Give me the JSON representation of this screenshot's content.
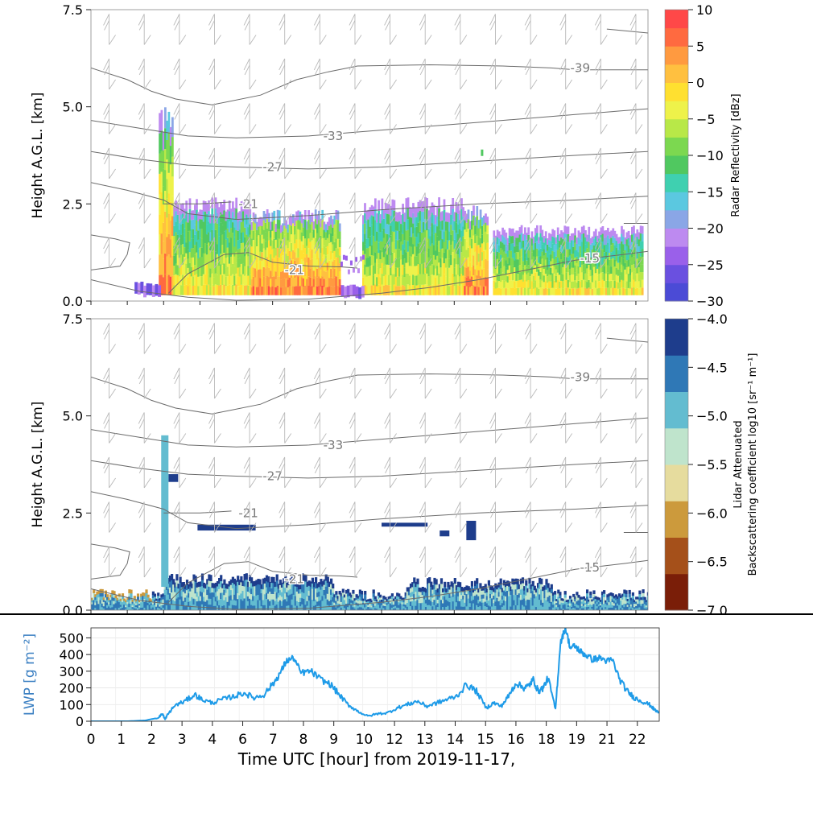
{
  "chart_data": [
    {
      "type": "heatmap",
      "panel": "radar",
      "ylabel": "Height A.G.L. [km]",
      "ylim": [
        0,
        7.5
      ],
      "yticks": [
        "0.0",
        "2.5",
        "5.0",
        "7.5"
      ],
      "colorbar": {
        "label": "Radar Reflectivity [dBz]",
        "range": [
          -30,
          10
        ],
        "ticks": [
          "10",
          "5",
          "0",
          "−5",
          "−10",
          "−15",
          "−20",
          "−25",
          "−30"
        ],
        "colors": [
          "#4b4bd6",
          "#6a50e0",
          "#9a60ea",
          "#bd8af0",
          "#8aa6e6",
          "#5bc8e0",
          "#3fd0b0",
          "#50c860",
          "#7cd850",
          "#b8e848",
          "#eef24a",
          "#ffe030",
          "#ffc040",
          "#ff9a40",
          "#ff6a40",
          "#ff4848"
        ]
      },
      "temperature_contours": [
        "-39",
        "-33",
        "-27",
        "-21",
        "-21",
        "-15"
      ],
      "echo_blocks_hours": [
        {
          "x0": 2.8,
          "x1": 3.4,
          "top_km": 5.0,
          "core": "red"
        },
        {
          "x0": 3.4,
          "x1": 6.6,
          "top_km": 2.6,
          "core": "yellow"
        },
        {
          "x0": 6.6,
          "x1": 10.3,
          "top_km": 2.3,
          "core": "red"
        },
        {
          "x0": 11.2,
          "x1": 15.4,
          "top_km": 2.6,
          "core": "yellow"
        },
        {
          "x0": 15.4,
          "x1": 16.4,
          "top_km": 2.4,
          "core": "red"
        },
        {
          "x0": 16.6,
          "x1": 22.8,
          "top_km": 1.9,
          "core": "yellow"
        }
      ]
    },
    {
      "type": "heatmap",
      "panel": "lidar",
      "ylabel": "Height A.G.L. [km]",
      "ylim": [
        0,
        7.5
      ],
      "yticks": [
        "0.0",
        "2.5",
        "5.0",
        "7.5"
      ],
      "colorbar": {
        "label_line1": "Lidar Attenuated",
        "label_line2": "Backscattering coefficient log10 [sr⁻¹ m⁻¹]",
        "range": [
          -7,
          -4
        ],
        "ticks": [
          "−4.0",
          "−4.5",
          "−5.0",
          "−5.5",
          "−6.0",
          "−6.5",
          "−7.0"
        ],
        "colors": [
          "#7a1e08",
          "#a5501a",
          "#cc9a3c",
          "#e6dc9e",
          "#bfe4cc",
          "#63bcd0",
          "#2f78b6",
          "#1e3d8c"
        ]
      },
      "temperature_contours": [
        "-39",
        "-33",
        "-27",
        "-21",
        "-21",
        "-15"
      ]
    },
    {
      "type": "line",
      "panel": "lwp",
      "ylabel": "LWP [g m⁻²]",
      "xlabel": "Time UTC [hour] from 2019-11-17,",
      "ylim": [
        0,
        560
      ],
      "yticks": [
        0,
        100,
        200,
        300,
        400,
        500
      ],
      "xticks": [
        "0",
        "1",
        "2",
        "3",
        "4",
        "6",
        "7",
        "8",
        "9",
        "10",
        "12",
        "13",
        "14",
        "15",
        "16",
        "18",
        "19",
        "21",
        "22"
      ],
      "color": "#1e9be8",
      "x": [
        0,
        1.5,
        2.2,
        2.7,
        2.9,
        3.0,
        3.1,
        3.4,
        3.8,
        4.2,
        4.5,
        4.9,
        5.3,
        5.8,
        6.2,
        6.6,
        7.0,
        7.4,
        7.7,
        7.9,
        8.2,
        8.5,
        8.9,
        9.3,
        9.7,
        10.1,
        10.4,
        10.8,
        11.2,
        11.6,
        12.0,
        12.4,
        12.8,
        13.2,
        13.6,
        14.0,
        14.4,
        14.8,
        15.2,
        15.6,
        16.0,
        16.3,
        16.6,
        16.9,
        17.2,
        17.5,
        17.7,
        17.9,
        18.1,
        18.3,
        18.5,
        18.8,
        19.0,
        19.2,
        19.4,
        19.6,
        19.8,
        20.0,
        20.3,
        20.6,
        20.9,
        21.1,
        21.4,
        21.7,
        22.0,
        22.3,
        22.6,
        22.8,
        23.0
      ],
      "y": [
        0,
        0,
        5,
        20,
        45,
        10,
        40,
        95,
        120,
        160,
        130,
        110,
        130,
        150,
        170,
        140,
        160,
        230,
        300,
        360,
        380,
        290,
        300,
        250,
        220,
        150,
        100,
        60,
        30,
        45,
        50,
        80,
        100,
        120,
        90,
        110,
        130,
        150,
        220,
        180,
        80,
        110,
        90,
        150,
        230,
        200,
        210,
        250,
        180,
        200,
        260,
        70,
        470,
        560,
        440,
        450,
        420,
        400,
        370,
        380,
        360,
        370,
        250,
        180,
        140,
        120,
        100,
        70,
        50
      ]
    }
  ]
}
